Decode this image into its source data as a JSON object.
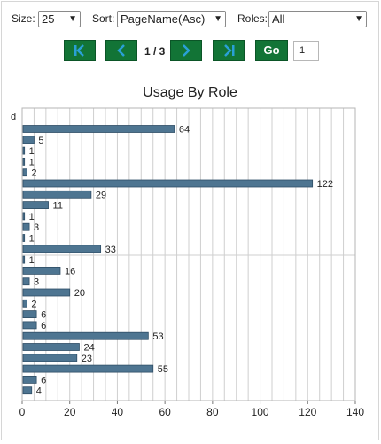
{
  "controls": {
    "size_label": "Size:",
    "size_value": "25",
    "sort_label": "Sort:",
    "sort_value": "PageName(Asc)",
    "roles_label": "Roles:",
    "roles_value": "All"
  },
  "pager": {
    "first_icon": "first-page-icon",
    "prev_icon": "previous-page-icon",
    "next_icon": "next-page-icon",
    "last_icon": "last-page-icon",
    "page_indicator": "1 / 3",
    "go_label": "Go",
    "page_input": "1"
  },
  "colors": {
    "button": "#127436",
    "button_icon": "#2aa0d6",
    "bar": "#4e7591",
    "grid": "#cfcfcf"
  },
  "chart_data": {
    "type": "bar",
    "orientation": "horizontal",
    "title": "Usage By Role",
    "partial_category_label": "d",
    "values": [
      64,
      5,
      1,
      1,
      2,
      122,
      29,
      11,
      1,
      3,
      1,
      33,
      1,
      16,
      3,
      20,
      2,
      6,
      6,
      53,
      24,
      23,
      55,
      6,
      4
    ],
    "xlim": [
      0,
      140
    ],
    "xticks": [
      0,
      20,
      40,
      60,
      80,
      100,
      120,
      140
    ],
    "minor_grid_step": 5,
    "grid": true
  }
}
